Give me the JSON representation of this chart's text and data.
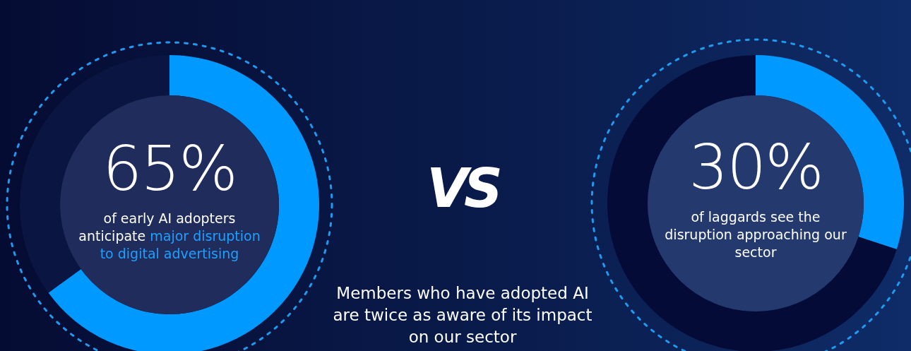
{
  "chart_data": [
    {
      "type": "donut",
      "categories": [
        null,
        null
      ],
      "values": [
        65,
        35
      ],
      "colors": [
        "#0099ff",
        "#0a1541"
      ],
      "annotations": [
        "65%",
        "of early AI adopters anticipate",
        "major disruption to digital advertising"
      ]
    },
    {
      "type": "donut",
      "categories": [
        null,
        null
      ],
      "values": [
        30,
        70
      ],
      "colors": [
        "#0099ff",
        "#030b36"
      ],
      "annotations": [
        "30%",
        "of laggards see the disruption approaching our sector"
      ]
    },
    {
      "type": "other",
      "annotations": [
        "VS",
        "Members who have adopted AI are twice as aware of its impact on our sector"
      ]
    }
  ]
}
